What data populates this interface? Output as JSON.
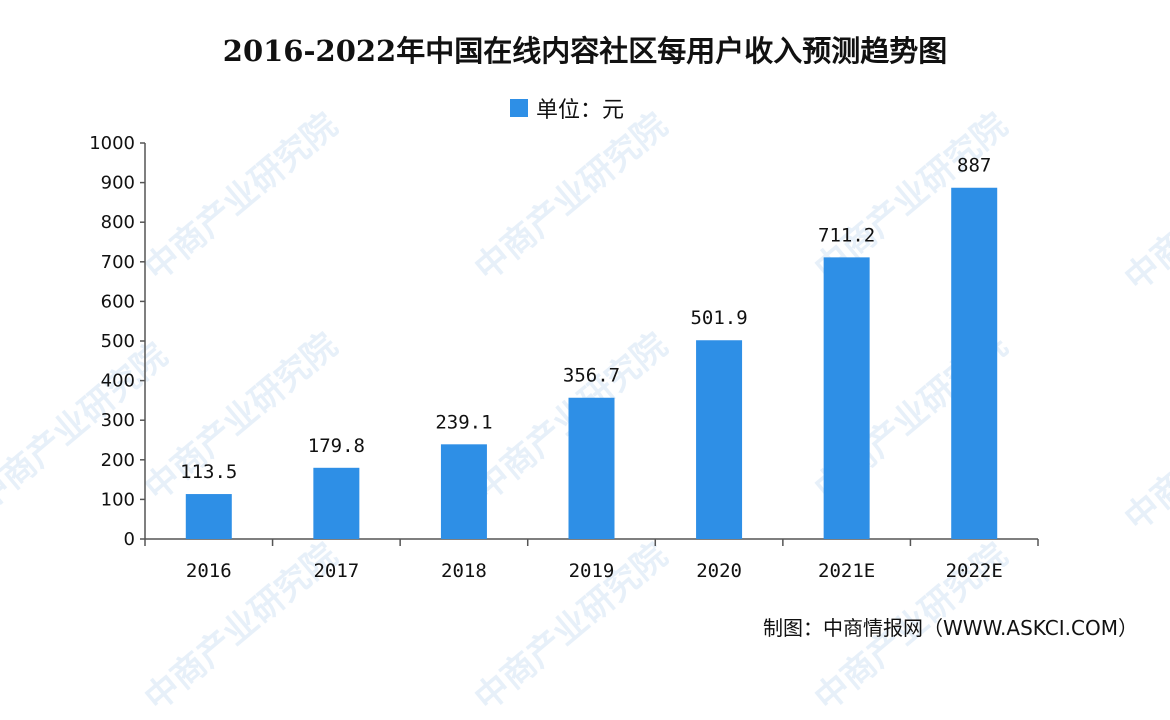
{
  "watermark": "中商产业研究院",
  "source": "制图：中商情报网（WWW.ASKCI.COM）",
  "colors": {
    "bar": "#2e8fe6",
    "axis": "#555555"
  },
  "chart_data": {
    "type": "bar",
    "title": "2016-2022年中国在线内容社区每用户收入预测趋势图",
    "legend": "单位：元",
    "legend_position": "top-center",
    "categories": [
      "2016",
      "2017",
      "2018",
      "2019",
      "2020",
      "2021E",
      "2022E"
    ],
    "values": [
      113.5,
      179.8,
      239.1,
      356.7,
      501.9,
      711.2,
      887
    ],
    "data_labels": [
      "113.5",
      "179.8",
      "239.1",
      "356.7",
      "501.9",
      "711.2",
      "887"
    ],
    "ylim": [
      0,
      1000
    ],
    "yticks": [
      0,
      100,
      200,
      300,
      400,
      500,
      600,
      700,
      800,
      900,
      1000
    ],
    "xlabel": "",
    "ylabel": "",
    "grid": false
  }
}
